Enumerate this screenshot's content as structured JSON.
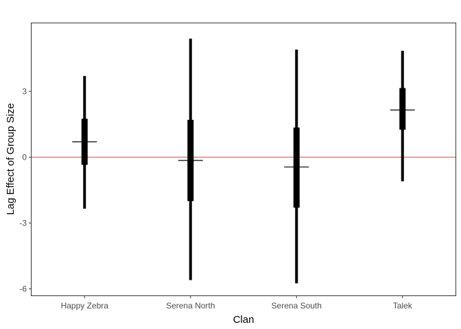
{
  "chart_data": {
    "type": "interval",
    "title": "",
    "xlabel": "Clan",
    "ylabel": "Lag Effect of Group Size",
    "categories": [
      "Happy Zebra",
      "Serena North",
      "Serena South",
      "Talek"
    ],
    "ylim": [
      -6.3,
      6.1
    ],
    "yticks": [
      -6,
      -3,
      0,
      3
    ],
    "ytick_labels": [
      "-6",
      "-3",
      "0",
      "3"
    ],
    "reference_line": {
      "y": 0,
      "color": "#cc4b4b"
    },
    "grid": false,
    "intervals": [
      {
        "category": "Happy Zebra",
        "median": 0.7,
        "inner_low": -0.35,
        "inner_high": 1.75,
        "outer_low": -2.35,
        "outer_high": 3.7
      },
      {
        "category": "Serena North",
        "median": -0.15,
        "inner_low": -2.0,
        "inner_high": 1.7,
        "outer_low": -5.6,
        "outer_high": 5.4
      },
      {
        "category": "Serena South",
        "median": -0.45,
        "inner_low": -2.3,
        "inner_high": 1.35,
        "outer_low": -5.75,
        "outer_high": 4.9
      },
      {
        "category": "Talek",
        "median": 2.15,
        "inner_low": 1.25,
        "inner_high": 3.15,
        "outer_low": -1.1,
        "outer_high": 4.85
      }
    ],
    "colors": {
      "interval": "#000000",
      "panel_border": "#333333",
      "reference_line": "#cc4b4b"
    }
  }
}
